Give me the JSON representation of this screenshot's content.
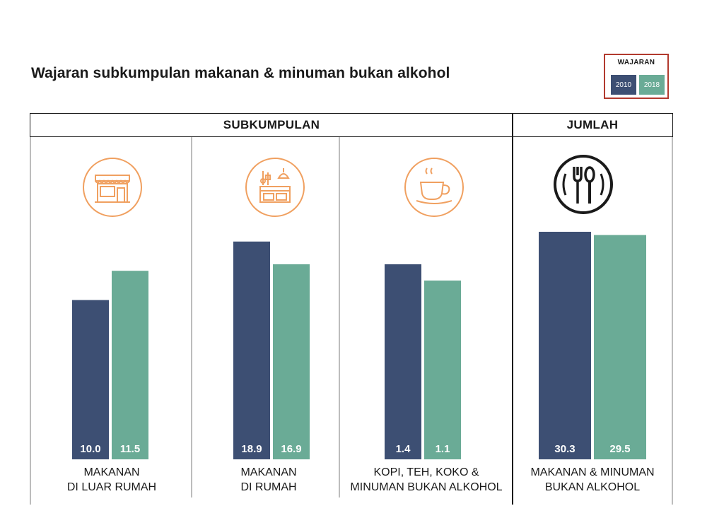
{
  "title": "Wajaran subkumpulan makanan & minuman bukan alkohol",
  "legend": {
    "title": "WAJARAN",
    "items": [
      {
        "label": "2010",
        "color": "#3d4f73"
      },
      {
        "label": "2018",
        "color": "#6aab96"
      }
    ]
  },
  "headers": {
    "subgroup": "SUBKUMPULAN",
    "total": "JUMLAH"
  },
  "icons": [
    "shop-icon",
    "kitchen-icon",
    "coffee-cup-icon",
    "plate-cutlery-icon"
  ],
  "chart_data": {
    "type": "bar",
    "title": "Wajaran subkumpulan makanan & minuman bukan alkohol",
    "categories": [
      {
        "line1": "MAKANAN",
        "line2": "DI LUAR RUMAH"
      },
      {
        "line1": "MAKANAN",
        "line2": "DI RUMAH"
      },
      {
        "line1": "KOPI, TEH, KOKO &",
        "line2": "MINUMAN BUKAN ALKOHOL"
      },
      {
        "line1": "MAKANAN & MINUMAN",
        "line2": "BUKAN ALKOHOL"
      }
    ],
    "series": [
      {
        "name": "2010",
        "values": [
          10.0,
          18.9,
          1.4,
          30.3
        ],
        "labels": [
          "10.0",
          "18.9",
          "1.4",
          "30.3"
        ]
      },
      {
        "name": "2018",
        "values": [
          11.5,
          16.9,
          1.1,
          29.5
        ],
        "labels": [
          "11.5",
          "16.9",
          "1.1",
          "29.5"
        ]
      }
    ],
    "groups": {
      "subgroup": [
        0,
        1,
        2
      ],
      "total": [
        3
      ]
    },
    "note": "Bar heights are illustrative (not to a common linear scale); values shown as data labels.",
    "relative_heights": [
      [
        0.49,
        0.58
      ],
      [
        0.67,
        0.6
      ],
      [
        0.6,
        0.55
      ],
      [
        0.7,
        0.69
      ]
    ]
  }
}
